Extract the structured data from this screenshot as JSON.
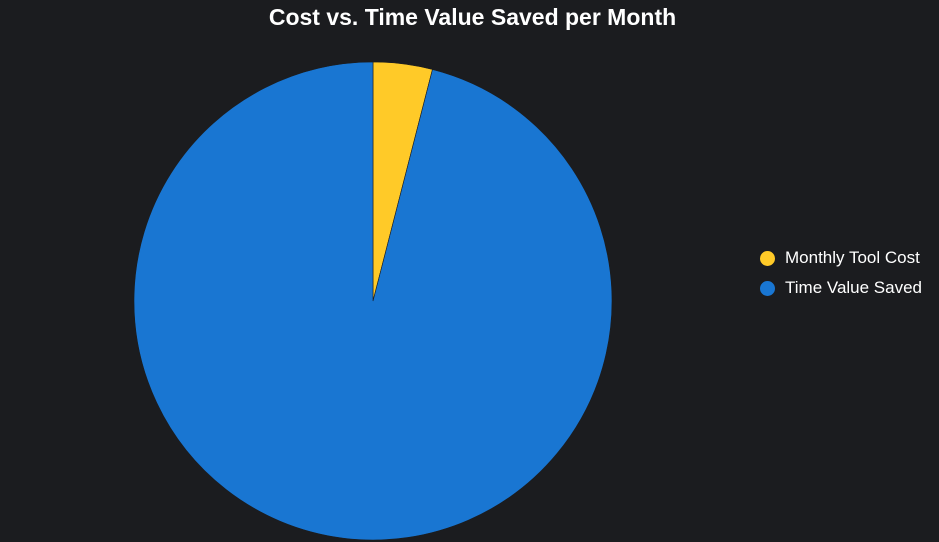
{
  "chart_data": {
    "type": "pie",
    "title": "Cost vs. Time Value Saved per Month",
    "slices": [
      {
        "name": "Monthly Tool Cost",
        "value": 4,
        "color": "#ffca28"
      },
      {
        "name": "Time Value Saved",
        "value": 96,
        "color": "#1976d2"
      }
    ],
    "start_angle": "top, clockwise",
    "legend": {
      "position": "right",
      "items": [
        "Monthly Tool Cost",
        "Time Value Saved"
      ]
    },
    "background_color": "#1b1c1f"
  }
}
